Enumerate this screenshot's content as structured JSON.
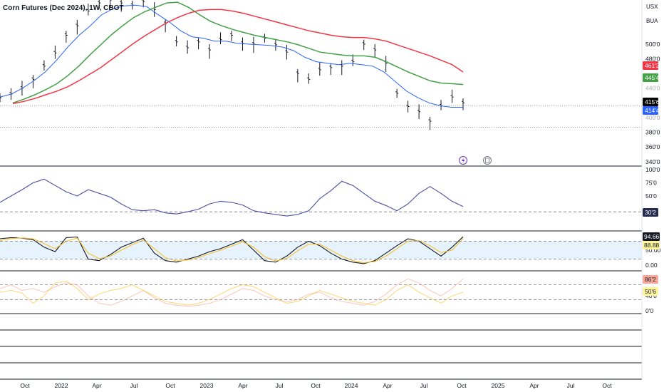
{
  "header": {
    "title": "Corn Futures (Dec 2024), 1W, CBOT",
    "currency": "USX",
    "unit": "BUA"
  },
  "colors": {
    "blue": "#2962ff",
    "green": "#089981",
    "green_line": "#43a047",
    "red": "#f23645",
    "navy": "#4a4fa0",
    "yellow": "#fbc02d",
    "orange": "#ffb74d",
    "pink": "#f7a99a",
    "band": "#dbeefc"
  },
  "icons": [
    "flash-icon",
    "dividend-icon"
  ],
  "chart_data": [
    {
      "type": "line",
      "name": "price-pane",
      "x_ticks": [
        "Oct",
        "2022",
        "Apr",
        "Jul",
        "Oct",
        "2023",
        "Apr",
        "Jul",
        "Oct",
        "2024",
        "Apr",
        "Jul",
        "Oct",
        "2025",
        "Apr",
        "Jul",
        "Oct"
      ],
      "y_ticks": [
        "500'0",
        "480'0",
        "380'0",
        "360'0",
        "340'0"
      ],
      "y_ticks_faded": [
        "440'0",
        "400'0"
      ],
      "ylim": [
        335,
        560
      ],
      "series": [
        {
          "values": [
            427,
            432,
            440,
            452,
            470,
            488,
            512,
            525,
            545,
            556,
            560,
            556,
            553,
            558,
            547,
            528,
            503,
            495,
            503,
            492,
            506,
            512,
            501,
            500,
            508,
            499,
            489,
            460,
            452,
            465,
            468,
            470,
            476,
            500,
            492,
            474,
            433,
            415,
            408,
            395,
            416,
            428,
            420
          ]
        },
        {
          "values": [
            428,
            432,
            440,
            450,
            462,
            478,
            496,
            512,
            525,
            540,
            548,
            552,
            553,
            551,
            540,
            530,
            518,
            510,
            508,
            504,
            504,
            501,
            500,
            499,
            498,
            496,
            491,
            482,
            476,
            474,
            472,
            474,
            472,
            470,
            462,
            449,
            436,
            427,
            420,
            416,
            414,
            414
          ]
        },
        {
          "values": [
            420,
            425,
            431,
            438,
            446,
            457,
            470,
            485,
            499,
            513,
            525,
            536,
            544,
            550,
            556,
            557,
            550,
            540,
            531,
            525,
            520,
            516,
            512,
            509,
            506,
            503,
            499,
            494,
            489,
            487,
            485,
            484,
            484,
            482,
            476,
            469,
            462,
            456,
            450,
            447,
            446,
            445
          ]
        },
        {
          "values": [
            419,
            422,
            426,
            431,
            436,
            442,
            450,
            459,
            468,
            479,
            490,
            501,
            511,
            520,
            529,
            536,
            542,
            546,
            547,
            547,
            545,
            542,
            538,
            534,
            530,
            526,
            522,
            518,
            515,
            512,
            510,
            509,
            509,
            507,
            504,
            499,
            494,
            489,
            484,
            478,
            472,
            462
          ]
        }
      ],
      "levels": [
        {
          "label": "461'2",
          "value": 461.25
        },
        {
          "label": "445'4",
          "value": 445.5
        },
        {
          "label": "415'6",
          "value": 415.75
        },
        {
          "label": "414'4",
          "value": 414.5
        }
      ],
      "reference_lines": [
        415.75,
        387
      ]
    },
    {
      "type": "line",
      "name": "oscillator-1",
      "y_ticks": [
        "100'0",
        "75'0",
        "50'0"
      ],
      "ylim": [
        0,
        100
      ],
      "series": [
        {
          "values": [
            38,
            50,
            62,
            75,
            82,
            70,
            58,
            50,
            62,
            55,
            48,
            35,
            24,
            22,
            24,
            18,
            16,
            20,
            25,
            35,
            40,
            38,
            33,
            22,
            18,
            15,
            12,
            15,
            22,
            45,
            60,
            78,
            70,
            55,
            40,
            32,
            22,
            35,
            55,
            68,
            55,
            40,
            30
          ]
        }
      ],
      "levels": [
        {
          "label": "30'2",
          "value": 30.2
        }
      ],
      "reference_lines": [
        20
      ]
    },
    {
      "type": "line",
      "name": "stochastic",
      "y_ticks": [
        "50.00",
        "0.00"
      ],
      "ylim": [
        0,
        100
      ],
      "band": [
        20,
        80
      ],
      "series": [
        {
          "values": [
            88,
            92,
            90,
            85,
            60,
            45,
            92,
            94,
            20,
            15,
            35,
            60,
            75,
            90,
            40,
            15,
            10,
            20,
            30,
            45,
            55,
            70,
            85,
            50,
            15,
            10,
            30,
            60,
            80,
            65,
            40,
            20,
            10,
            5,
            15,
            40,
            65,
            88,
            80,
            55,
            30,
            60,
            94.66
          ]
        },
        {
          "values": [
            82,
            88,
            91,
            88,
            72,
            55,
            80,
            90,
            40,
            22,
            30,
            50,
            68,
            84,
            55,
            25,
            14,
            17,
            25,
            38,
            50,
            63,
            78,
            60,
            28,
            14,
            22,
            48,
            70,
            70,
            50,
            30,
            15,
            8,
            12,
            30,
            55,
            80,
            82,
            65,
            42,
            50,
            88.88
          ]
        }
      ],
      "levels": [
        {
          "label": "94.66",
          "value": 94.66
        },
        {
          "label": "88.88",
          "value": 88.88
        }
      ]
    },
    {
      "type": "line",
      "name": "oscillator-2",
      "y_ticks": [
        "40'0",
        "0'0"
      ],
      "ylim": [
        0,
        100
      ],
      "series": [
        {
          "values": [
            60,
            70,
            55,
            60,
            50,
            65,
            75,
            70,
            40,
            20,
            15,
            25,
            40,
            55,
            35,
            20,
            15,
            12,
            15,
            20,
            30,
            45,
            60,
            55,
            40,
            30,
            25,
            30,
            45,
            50,
            35,
            25,
            20,
            15,
            25,
            45,
            70,
            86,
            75,
            55,
            40,
            60,
            86
          ]
        },
        {
          "values": [
            50,
            55,
            48,
            20,
            40,
            75,
            80,
            60,
            30,
            45,
            55,
            60,
            70,
            55,
            40,
            25,
            20,
            15,
            20,
            30,
            45,
            60,
            70,
            65,
            50,
            35,
            20,
            25,
            40,
            55,
            45,
            35,
            25,
            20,
            15,
            30,
            55,
            70,
            50,
            35,
            20,
            40,
            50
          ]
        }
      ],
      "levels": [
        {
          "label": "86'2",
          "value": 86.25
        },
        {
          "label": "50'6",
          "value": 50.75
        }
      ],
      "reference_lines": [
        70,
        30
      ]
    }
  ]
}
